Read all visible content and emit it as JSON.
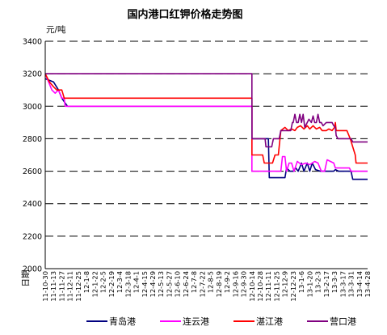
{
  "chart_data": {
    "type": "line",
    "title": "国内港口红钾价格走势图",
    "ylabel": "元/吨",
    "xlabel": "日期",
    "ylim": [
      2000,
      3400
    ],
    "yticks": [
      2000,
      2200,
      2400,
      2600,
      2800,
      3000,
      3200,
      3400
    ],
    "grid": true,
    "legend_position": "bottom",
    "x_tick_labels": [
      "11-10-30",
      "11-11-13",
      "11-11-27",
      "11-12-11",
      "11-12-25",
      "12-1-8",
      "12-1-22",
      "12-2-5",
      "12-2-19",
      "12-3-4",
      "12-3-18",
      "12-4-1",
      "12-4-15",
      "12-4-29",
      "12-5-13",
      "12-5-27",
      "12-6-10",
      "12-6-24",
      "12-7-8",
      "12-7-22",
      "12-8-5",
      "12-8-19",
      "12-9-2",
      "12-9-16",
      "12-9-30",
      "12-10-14",
      "12-10-28",
      "12-11-11",
      "12-11-25",
      "12-12-9",
      "12-12-23",
      "13-1-6",
      "13-1-20",
      "13-2-3",
      "13-2-17",
      "13-3-3",
      "13-3-17",
      "13-3-31",
      "13-4-14",
      "13-4-28"
    ],
    "series": [
      {
        "name": "青岛港",
        "color": "#000080",
        "points": [
          [
            0,
            3170
          ],
          [
            0.5,
            3160
          ],
          [
            1,
            3150
          ],
          [
            1.6,
            3100
          ],
          [
            2,
            3050
          ],
          [
            2.4,
            3020
          ],
          [
            2.7,
            3000
          ],
          [
            13,
            3000
          ],
          [
            24.6,
            3000
          ],
          [
            25,
            3000
          ],
          [
            25,
            2800
          ],
          [
            27,
            2800
          ],
          [
            27.1,
            2560
          ],
          [
            29,
            2560
          ],
          [
            29.2,
            2620
          ],
          [
            29.6,
            2600
          ],
          [
            30,
            2600
          ],
          [
            30.3,
            2620
          ],
          [
            30.6,
            2600
          ],
          [
            31,
            2650
          ],
          [
            31.3,
            2600
          ],
          [
            31.7,
            2650
          ],
          [
            32,
            2600
          ],
          [
            32.3,
            2650
          ],
          [
            32.7,
            2610
          ],
          [
            33.3,
            2600
          ],
          [
            34.9,
            2600
          ],
          [
            35.1,
            2610
          ],
          [
            35.5,
            2600
          ],
          [
            37,
            2600
          ],
          [
            37.2,
            2550
          ],
          [
            39,
            2550
          ]
        ]
      },
      {
        "name": "连云港",
        "color": "#ff00ff",
        "points": [
          [
            0,
            3200
          ],
          [
            0.4,
            3150
          ],
          [
            0.8,
            3100
          ],
          [
            1.2,
            3080
          ],
          [
            1.6,
            3100
          ],
          [
            2,
            3050
          ],
          [
            2.3,
            3050
          ],
          [
            2.4,
            3000
          ],
          [
            2.7,
            3000
          ],
          [
            13,
            3000
          ],
          [
            24.6,
            3000
          ],
          [
            25,
            3000
          ],
          [
            25,
            2600
          ],
          [
            27,
            2600
          ],
          [
            27.1,
            2600
          ],
          [
            28.5,
            2600
          ],
          [
            28.7,
            2690
          ],
          [
            29,
            2690
          ],
          [
            29.2,
            2600
          ],
          [
            29.5,
            2650
          ],
          [
            29.8,
            2650
          ],
          [
            30.1,
            2600
          ],
          [
            30.5,
            2660
          ],
          [
            31,
            2640
          ],
          [
            31.5,
            2650
          ],
          [
            32,
            2640
          ],
          [
            32.6,
            2660
          ],
          [
            33,
            2650
          ],
          [
            33.4,
            2600
          ],
          [
            33.8,
            2600
          ],
          [
            34.1,
            2670
          ],
          [
            34.5,
            2660
          ],
          [
            34.9,
            2650
          ],
          [
            35.1,
            2620
          ],
          [
            36,
            2620
          ],
          [
            36.8,
            2620
          ],
          [
            37,
            2600
          ],
          [
            39,
            2600
          ]
        ]
      },
      {
        "name": "湛江港",
        "color": "#ff0000",
        "points": [
          [
            0,
            3200
          ],
          [
            0.5,
            3150
          ],
          [
            1,
            3120
          ],
          [
            1.4,
            3100
          ],
          [
            2,
            3100
          ],
          [
            2.3,
            3050
          ],
          [
            2.7,
            3050
          ],
          [
            13,
            3050
          ],
          [
            24.6,
            3050
          ],
          [
            25,
            3050
          ],
          [
            25,
            2700
          ],
          [
            26.3,
            2700
          ],
          [
            26.5,
            2650
          ],
          [
            27.5,
            2650
          ],
          [
            27.8,
            2700
          ],
          [
            28.2,
            2700
          ],
          [
            28.5,
            2850
          ],
          [
            29,
            2870
          ],
          [
            29.4,
            2850
          ],
          [
            29.8,
            2860
          ],
          [
            30.2,
            2850
          ],
          [
            30.5,
            2870
          ],
          [
            30.9,
            2880
          ],
          [
            31.3,
            2860
          ],
          [
            31.7,
            2880
          ],
          [
            32,
            2860
          ],
          [
            32.4,
            2880
          ],
          [
            32.8,
            2860
          ],
          [
            33.2,
            2870
          ],
          [
            33.5,
            2850
          ],
          [
            34,
            2850
          ],
          [
            34.3,
            2860
          ],
          [
            34.7,
            2850
          ],
          [
            35,
            2870
          ],
          [
            35.1,
            2900
          ],
          [
            35.2,
            2850
          ],
          [
            36.5,
            2850
          ],
          [
            36.9,
            2800
          ],
          [
            37.5,
            2700
          ],
          [
            37.6,
            2650
          ],
          [
            39,
            2650
          ]
        ]
      },
      {
        "name": "营口港",
        "color": "#800080",
        "points": [
          [
            0,
            3200
          ],
          [
            13,
            3200
          ],
          [
            24.6,
            3200
          ],
          [
            25,
            3200
          ],
          [
            25,
            2800
          ],
          [
            26.6,
            2800
          ],
          [
            26.7,
            2750
          ],
          [
            27.4,
            2750
          ],
          [
            27.6,
            2800
          ],
          [
            28.3,
            2800
          ],
          [
            28.5,
            2850
          ],
          [
            29.5,
            2850
          ],
          [
            29.7,
            2850
          ],
          [
            29.9,
            2900
          ],
          [
            30,
            2900
          ],
          [
            30.2,
            2950
          ],
          [
            30.4,
            2900
          ],
          [
            30.6,
            2900
          ],
          [
            30.8,
            2950
          ],
          [
            31,
            2900
          ],
          [
            31.2,
            2950
          ],
          [
            31.4,
            2870
          ],
          [
            31.7,
            2900
          ],
          [
            31.9,
            2920
          ],
          [
            32.2,
            2900
          ],
          [
            32.4,
            2940
          ],
          [
            32.6,
            2900
          ],
          [
            32.8,
            2900
          ],
          [
            33,
            2950
          ],
          [
            33.2,
            2900
          ],
          [
            33.4,
            2900
          ],
          [
            33.6,
            2880
          ],
          [
            34,
            2900
          ],
          [
            34.4,
            2900
          ],
          [
            34.7,
            2900
          ],
          [
            34.9,
            2880
          ],
          [
            35.1,
            2870
          ],
          [
            35.2,
            2820
          ],
          [
            35.4,
            2800
          ],
          [
            36,
            2800
          ],
          [
            37,
            2800
          ],
          [
            37.2,
            2780
          ],
          [
            39,
            2780
          ]
        ]
      }
    ]
  }
}
